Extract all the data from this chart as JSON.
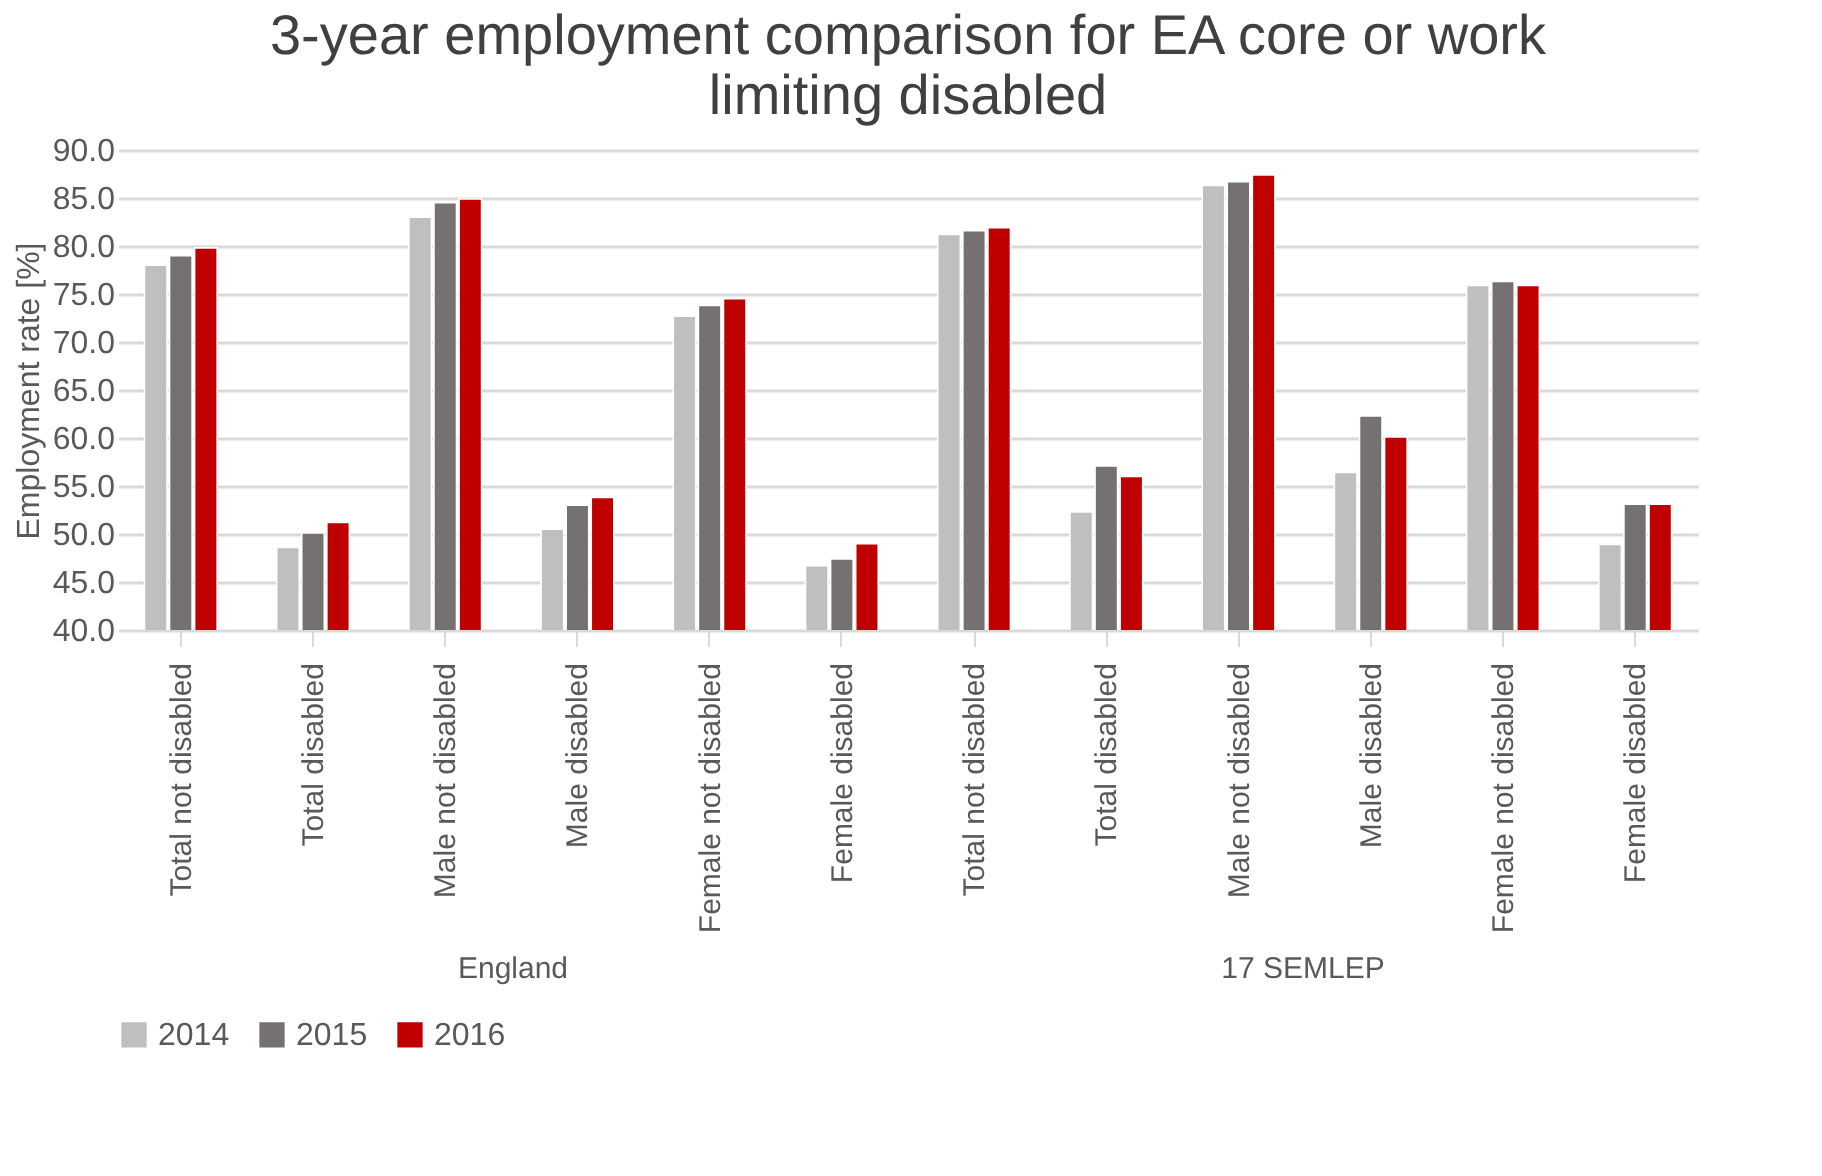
{
  "chart_data": {
    "type": "bar",
    "title": "3-year employment comparison for EA core or work limiting disabled",
    "ylabel": "Employment rate [%]",
    "categories": [
      "Total not disabled",
      "Total disabled",
      "Male not disabled",
      "Male disabled",
      "Female not disabled",
      "Female disabled",
      "Total not disabled",
      "Total disabled",
      "Male not disabled",
      "Male disabled",
      "Female not disabled",
      "Female disabled"
    ],
    "series": [
      {
        "name": "2014",
        "color": "#bfbfbf",
        "values": [
          78.0,
          48.6,
          83.0,
          50.5,
          72.7,
          46.7,
          81.2,
          52.3,
          86.3,
          56.4,
          75.9,
          48.9
        ]
      },
      {
        "name": "2015",
        "color": "#767171",
        "values": [
          79.0,
          50.1,
          84.5,
          53.0,
          73.8,
          47.4,
          81.6,
          57.1,
          86.7,
          62.3,
          76.3,
          53.1
        ]
      },
      {
        "name": "2016",
        "color": "#c00000",
        "values": [
          79.8,
          51.2,
          84.9,
          53.8,
          74.5,
          49.0,
          81.9,
          56.0,
          87.4,
          60.1,
          75.9,
          53.1
        ]
      }
    ],
    "ylim": [
      40,
      90
    ],
    "yticks": [
      {
        "value": 40,
        "label": "40.0"
      },
      {
        "value": 45,
        "label": "45.0"
      },
      {
        "value": 50,
        "label": "50.0"
      },
      {
        "value": 55,
        "label": "55.0"
      },
      {
        "value": 60,
        "label": "60.0"
      },
      {
        "value": 65,
        "label": "65.0"
      },
      {
        "value": 70,
        "label": "70.0"
      },
      {
        "value": 75,
        "label": "75.0"
      },
      {
        "value": 80,
        "label": "80.0"
      },
      {
        "value": 85,
        "label": "85.0"
      },
      {
        "value": 90,
        "label": "90.0"
      }
    ],
    "annotations": [
      "England",
      "17 SEMLEP"
    ],
    "grid": "y",
    "legend": "bottom"
  }
}
